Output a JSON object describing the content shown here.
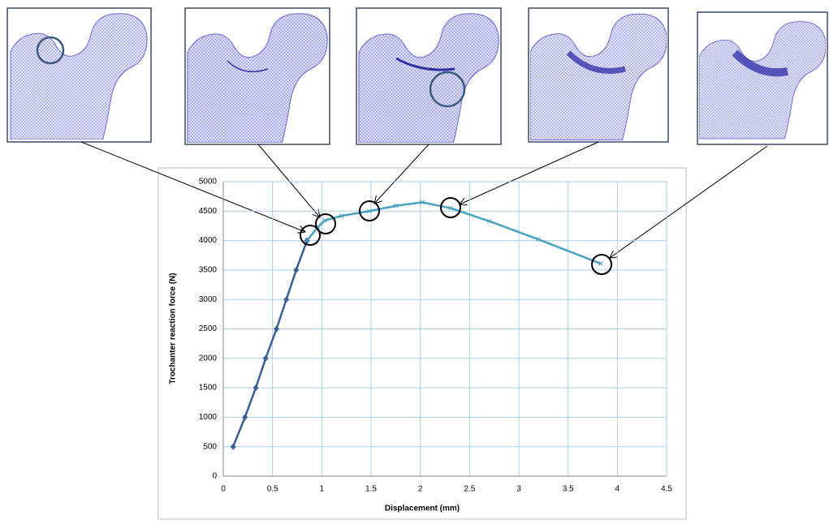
{
  "chart_data": {
    "type": "line",
    "x_label": "Displacement (mm)",
    "y_label": "Trochanter reaction force (N)",
    "series": [
      {
        "color": "#3b5e98",
        "x": [
          0.1,
          0.22,
          0.33,
          0.43,
          0.54,
          0.64,
          0.74,
          0.85
        ],
        "values": [
          500,
          1000,
          1500,
          2000,
          2500,
          3000,
          3500,
          4000
        ]
      },
      {
        "color": "#4aa0bf",
        "x": [
          0.85,
          0.96,
          1.03,
          1.2,
          1.48,
          1.75,
          2.02,
          2.31,
          2.7,
          3.2,
          3.83
        ],
        "values": [
          4000,
          4230,
          4340,
          4420,
          4500,
          4590,
          4650,
          4550,
          4330,
          4020,
          3610
        ]
      }
    ],
    "xlim": [
      0,
      4.5
    ],
    "xticks": [
      0,
      0.5,
      1,
      1.5,
      2,
      2.5,
      3,
      3.5,
      4,
      4.5
    ],
    "ylim": [
      0,
      5000
    ],
    "yticks": [
      0,
      500,
      1000,
      1500,
      2000,
      2500,
      3000,
      3500,
      4000,
      4500,
      5000
    ],
    "grid": true
  }
}
